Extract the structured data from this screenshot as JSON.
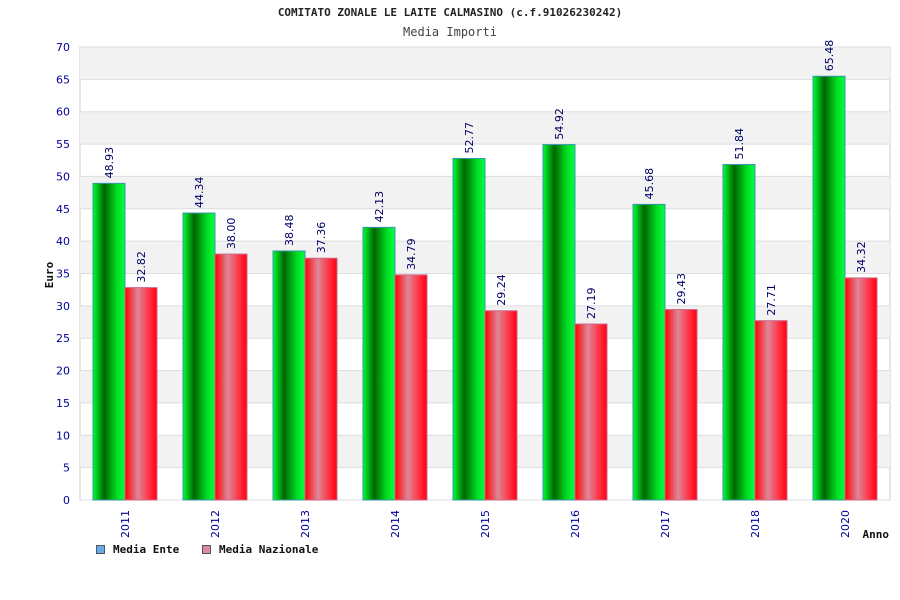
{
  "title": "COMITATO ZONALE LE LAITE CALMASINO (c.f.91026230242)",
  "subtitle": "Media Importi",
  "legend": {
    "series_a": "Media Ente",
    "series_b": "Media Nazionale"
  },
  "colors": {
    "series_a": "#00cc22",
    "series_b": "#ee1122",
    "legend_a": "#66aaee",
    "legend_b": "#dd88aa",
    "axis_text": "#000099",
    "grid_band": "#f2f2f2"
  },
  "chart_data": {
    "type": "bar",
    "xlabel": "Anno",
    "ylabel": "Euro",
    "ylim": [
      0,
      70
    ],
    "yticks": [
      0,
      5,
      10,
      15,
      20,
      25,
      30,
      35,
      40,
      45,
      50,
      55,
      60,
      65,
      70
    ],
    "categories": [
      "2011",
      "2012",
      "2013",
      "2014",
      "2015",
      "2016",
      "2017",
      "2018",
      "2020"
    ],
    "series": [
      {
        "name": "Media Ente",
        "values": [
          48.93,
          44.34,
          38.48,
          42.13,
          52.77,
          54.92,
          45.68,
          51.84,
          65.48
        ],
        "labels": [
          "48.93",
          "44.34",
          "38.48",
          "42.13",
          "52.77",
          "54.92",
          "45.68",
          "51.84",
          "65.48"
        ]
      },
      {
        "name": "Media Nazionale",
        "values": [
          32.82,
          38.0,
          37.36,
          34.79,
          29.24,
          27.19,
          29.43,
          27.71,
          34.32
        ],
        "labels": [
          "32.82",
          "38.00",
          "37.36",
          "34.79",
          "29.24",
          "27.19",
          "29.43",
          "27.71",
          "34.32"
        ]
      }
    ],
    "grid": true,
    "legend_position": "bottom-left"
  }
}
